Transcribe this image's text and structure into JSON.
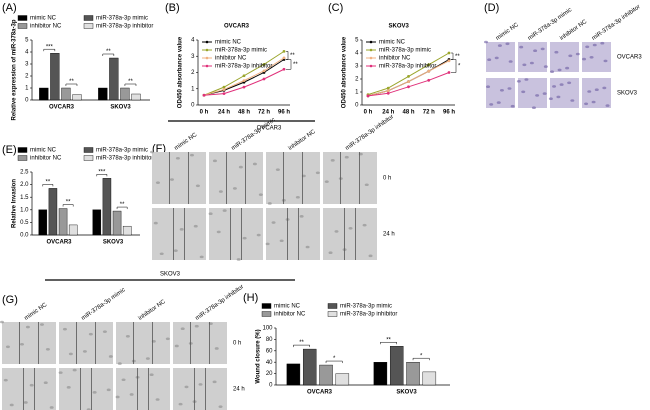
{
  "chart_data": [
    {
      "type": "bar",
      "panel": "(A)",
      "ylabel": "Relative expression of miR-378a-3p",
      "categories": [
        "OVCAR3",
        "SKOV3"
      ],
      "series": [
        {
          "name": "mimic NC",
          "color": "#000000",
          "values": [
            1.0,
            1.0
          ]
        },
        {
          "name": "miR-378a-3p mimic",
          "color": "#555555",
          "values": [
            3.9,
            3.5
          ]
        },
        {
          "name": "inhibitor NC",
          "color": "#999999",
          "values": [
            1.0,
            1.0
          ]
        },
        {
          "name": "miR-378a-3p inhibitor",
          "color": "#e0e0e0",
          "values": [
            0.45,
            0.5
          ]
        }
      ],
      "significance": [
        [
          "***",
          "**"
        ],
        [
          "**",
          "**"
        ]
      ],
      "ylim": [
        0,
        5
      ],
      "yticks": [
        0,
        1,
        2,
        3,
        4,
        5
      ]
    },
    {
      "type": "line",
      "panel": "(B)",
      "title": "OVCAR3",
      "ylabel": "OD450 absorbance value",
      "footer": "OVCAR3",
      "categories": [
        "0 h",
        "24 h",
        "48 h",
        "72 h",
        "96 h"
      ],
      "series": [
        {
          "name": "mimic NC",
          "color": "#000000",
          "values": [
            0.6,
            0.9,
            1.4,
            2.0,
            2.8
          ]
        },
        {
          "name": "miR-378a-3p mimic",
          "color": "#9aa52b",
          "values": [
            0.6,
            1.1,
            1.8,
            2.5,
            3.3
          ]
        },
        {
          "name": "inhibitor NC",
          "color": "#f0b080",
          "values": [
            0.6,
            0.95,
            1.5,
            2.1,
            2.9
          ]
        },
        {
          "name": "miR-378a-3p inhibitor",
          "color": "#e0307a",
          "values": [
            0.6,
            0.7,
            1.1,
            1.6,
            2.2
          ]
        }
      ],
      "significance": [
        "**",
        "**"
      ],
      "ylim": [
        0,
        4
      ],
      "yticks": [
        0,
        1,
        2,
        3,
        4
      ]
    },
    {
      "type": "line",
      "panel": "(C)",
      "title": "SKOV3",
      "ylabel": "OD450 absorbance value",
      "categories": [
        "0 h",
        "24 h",
        "48 h",
        "72 h",
        "96 h"
      ],
      "series": [
        {
          "name": "mimic NC",
          "color": "#000000",
          "values": [
            0.7,
            1.1,
            1.8,
            2.6,
            3.5
          ]
        },
        {
          "name": "miR-378a-3p mimic",
          "color": "#9aa52b",
          "values": [
            0.8,
            1.3,
            2.2,
            3.1,
            4.0
          ]
        },
        {
          "name": "inhibitor NC",
          "color": "#f0b080",
          "values": [
            0.7,
            1.1,
            1.8,
            2.6,
            3.4
          ]
        },
        {
          "name": "miR-378a-3p inhibitor",
          "color": "#e0307a",
          "values": [
            0.7,
            0.9,
            1.4,
            1.9,
            2.5
          ]
        }
      ],
      "significance": [
        "**",
        "*"
      ],
      "ylim": [
        0,
        5
      ],
      "yticks": [
        0,
        1,
        2,
        3,
        4,
        5
      ]
    },
    {
      "type": "bar",
      "panel": "(E)",
      "ylabel": "Relative Invasion",
      "categories": [
        "OVCAR3",
        "SKOV3"
      ],
      "series": [
        {
          "name": "mimic NC",
          "color": "#000000",
          "values": [
            1.0,
            1.0
          ]
        },
        {
          "name": "miR-378a-3p mimic",
          "color": "#555555",
          "values": [
            1.85,
            2.25
          ]
        },
        {
          "name": "inhibitor NC",
          "color": "#999999",
          "values": [
            1.05,
            0.95
          ]
        },
        {
          "name": "miR-378a-3p inhibitor",
          "color": "#e0e0e0",
          "values": [
            0.4,
            0.35
          ]
        }
      ],
      "significance": [
        [
          "**",
          "**"
        ],
        [
          "***",
          "**"
        ]
      ],
      "ylim": [
        0,
        2.5
      ],
      "yticks": [
        {
          "value": 0,
          "label": "0.0"
        },
        {
          "value": 0.5,
          "label": "0.5"
        },
        {
          "value": 1,
          "label": "1.0"
        },
        {
          "value": 1.5,
          "label": "1.5"
        },
        {
          "value": 2,
          "label": "2.0"
        },
        {
          "value": 2.5,
          "label": "2.5"
        }
      ]
    },
    {
      "type": "bar",
      "panel": "(H)",
      "ylabel": "Wound closure (%)",
      "categories": [
        "OVCAR3",
        "SKOV3"
      ],
      "series": [
        {
          "name": "mimic NC",
          "color": "#000000",
          "values": [
            37,
            40
          ]
        },
        {
          "name": "miR-378a-3p mimic",
          "color": "#555555",
          "values": [
            63,
            68
          ]
        },
        {
          "name": "inhibitor NC",
          "color": "#999999",
          "values": [
            35,
            40
          ]
        },
        {
          "name": "miR-378a-3p inhibitor",
          "color": "#e0e0e0",
          "values": [
            20,
            23
          ]
        }
      ],
      "significance": [
        [
          "**",
          "*"
        ],
        [
          "**",
          "*"
        ]
      ],
      "ylim": [
        0,
        100
      ],
      "yticks": [
        0,
        20,
        40,
        60,
        80,
        100
      ]
    }
  ],
  "image_panels": [
    {
      "panel": "(D)",
      "columns": [
        "mimic NC",
        "miR-378a-3p mimic",
        "inhibitor NC",
        "miR-378a-3p inhibitor"
      ],
      "rows": [
        "OVCAR3",
        "SKOV3"
      ]
    },
    {
      "panel": "(F)",
      "columns": [
        "mimic NC",
        "miR-378a-3p mimic",
        "inhibitor NC",
        "miR-378a-3p inhibitor"
      ],
      "rows": [
        "0 h",
        "24 h"
      ],
      "footer": "SKOV3"
    },
    {
      "panel": "(G)",
      "columns": [
        "mimic NC",
        "miR-378a-3p mimic",
        "inhibitor NC",
        "miR-378a-3p inhibitor"
      ],
      "rows": [
        "0 h",
        "24 h"
      ]
    }
  ]
}
